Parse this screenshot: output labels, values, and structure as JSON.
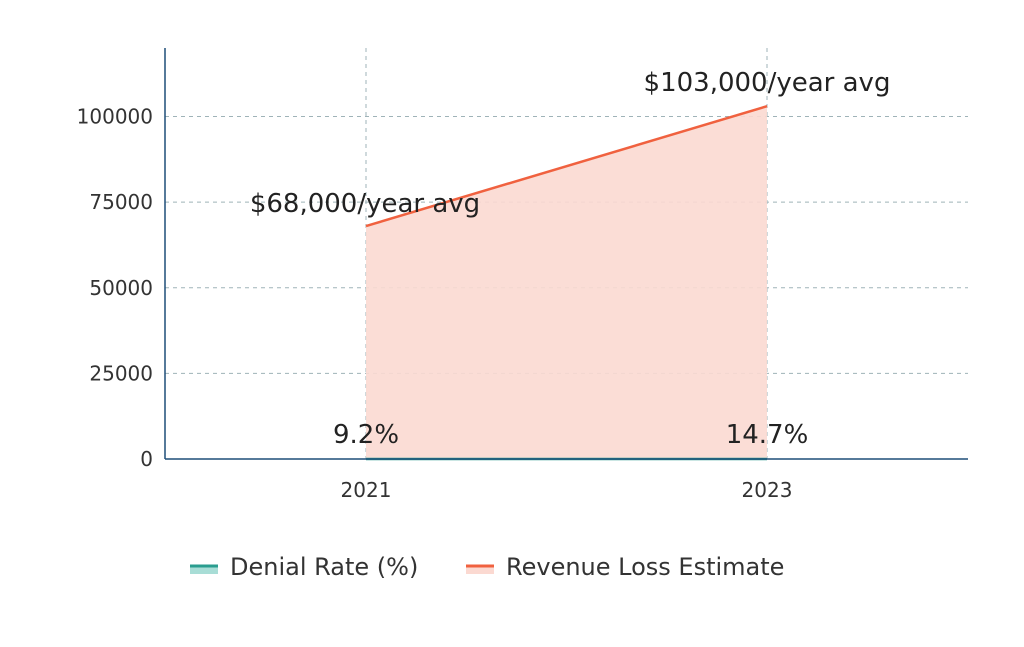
{
  "chart_data": {
    "type": "area",
    "x": [
      "2021",
      "2023"
    ],
    "ylim": [
      0,
      120000
    ],
    "yticks": [
      0,
      25000,
      50000,
      75000,
      100000
    ],
    "ytick_labels": [
      "0",
      "25000",
      "50000",
      "75000",
      "100000"
    ],
    "grid": true,
    "legend_position": "bottom",
    "series": [
      {
        "name": "Denial Rate (%)",
        "values": [
          9.2,
          14.7
        ],
        "color": "#2a9d8f",
        "fill": "#a8ddd6"
      },
      {
        "name": "Revenue Loss Estimate",
        "values": [
          68000,
          103000
        ],
        "color": "#f0613f",
        "fill": "#fbd9d1"
      }
    ],
    "annotations": [
      {
        "text": "$68,000/year avg",
        "x": "2021",
        "y": 68000
      },
      {
        "text": "$103,000/year avg",
        "x": "2023",
        "y": 103000
      },
      {
        "text": "9.2%",
        "x": "2021",
        "y": 9.2
      },
      {
        "text": "14.7%",
        "x": "2023",
        "y": 14.7
      }
    ]
  }
}
